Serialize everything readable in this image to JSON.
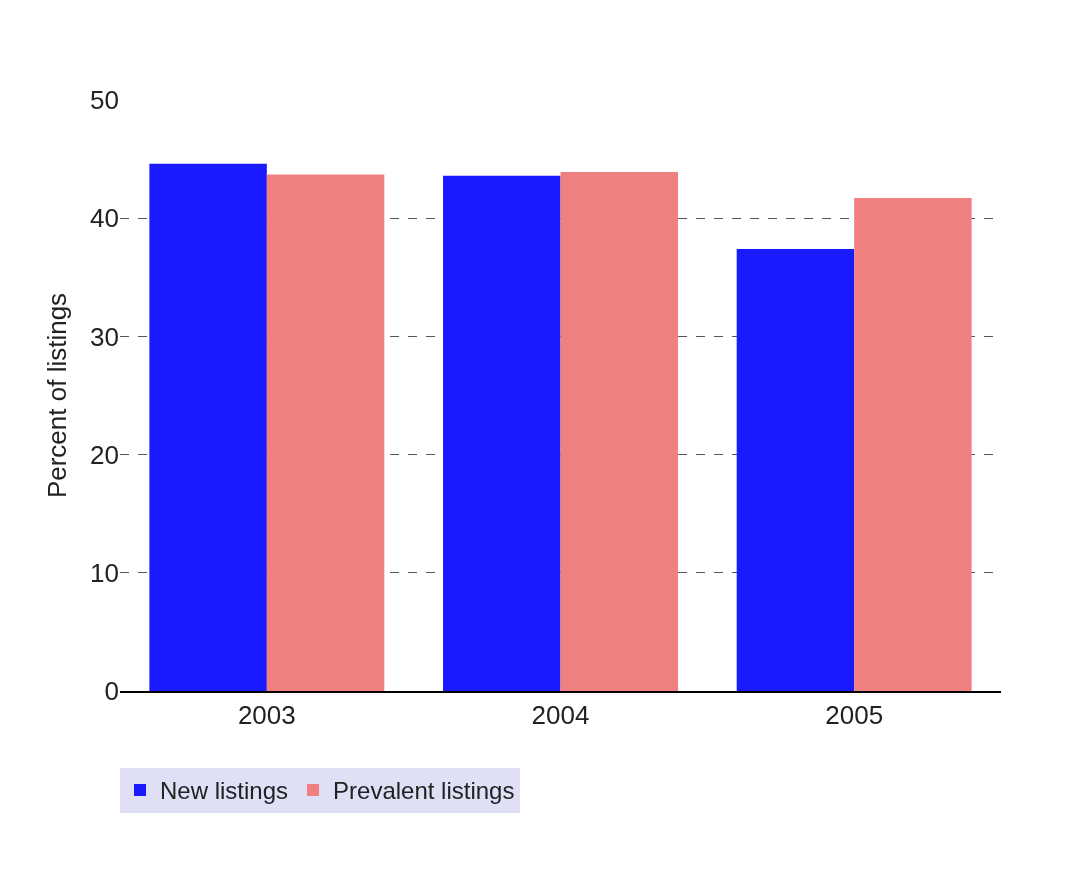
{
  "chart_data": {
    "type": "bar",
    "ylabel": "Percent of listings",
    "categories": [
      "2003",
      "2004",
      "2005"
    ],
    "series": [
      {
        "name": "New listings",
        "color": "#1a1aff",
        "values": [
          44.6,
          43.6,
          37.4
        ]
      },
      {
        "name": "Prevalent listings",
        "color": "#f08080",
        "values": [
          43.7,
          43.9,
          41.7
        ]
      }
    ],
    "ylim": [
      0,
      50
    ],
    "yticks": [
      0,
      10,
      20,
      30,
      40,
      50
    ],
    "grid": "y",
    "legend": "bottom left"
  }
}
